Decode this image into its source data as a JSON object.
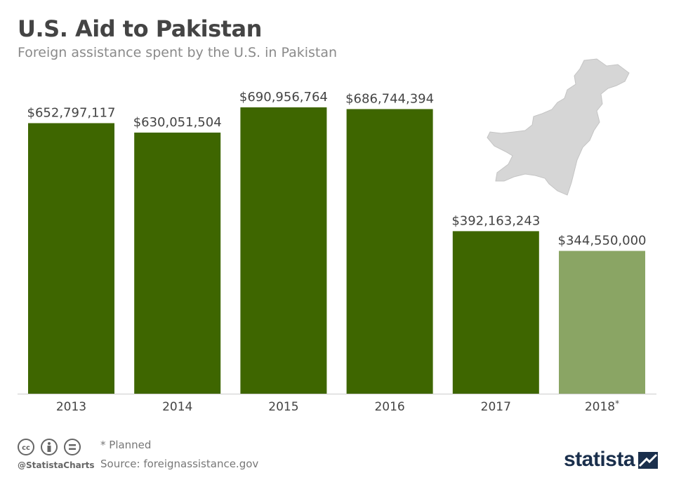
{
  "header": {
    "title": "U.S. Aid to Pakistan",
    "subtitle": "Foreign assistance spent by the U.S. in Pakistan"
  },
  "chart_data": {
    "type": "bar",
    "title": "U.S. Aid to Pakistan",
    "subtitle": "Foreign assistance spent by the U.S. in Pakistan",
    "categories": [
      "2013",
      "2014",
      "2015",
      "2016",
      "2017",
      "2018*"
    ],
    "values": [
      652797117,
      630051504,
      690956764,
      686744394,
      392163243,
      344550000
    ],
    "value_labels": [
      "$652,797,117",
      "$630,051,504",
      "$690,956,764",
      "$686,744,394",
      "$392,163,243",
      "$344,550,000"
    ],
    "planned": [
      false,
      false,
      false,
      false,
      false,
      true
    ],
    "xlabel": "",
    "ylabel": "",
    "ylim": [
      0,
      740000000
    ],
    "grid": false,
    "colors": {
      "actual": "#3e6600",
      "planned": "#8aa564",
      "axis": "#cccccc",
      "label": "#444444"
    }
  },
  "decoration": {
    "map_icon": "pakistan-map-icon",
    "map_color": "#d4d4d4"
  },
  "footer": {
    "footnote": "* Planned",
    "source": "Source: foreignassistance.gov",
    "handle": "@StatistaCharts",
    "brand": "statista",
    "license_icons": [
      "cc-icon",
      "attribution-icon",
      "no-derivatives-icon"
    ]
  }
}
